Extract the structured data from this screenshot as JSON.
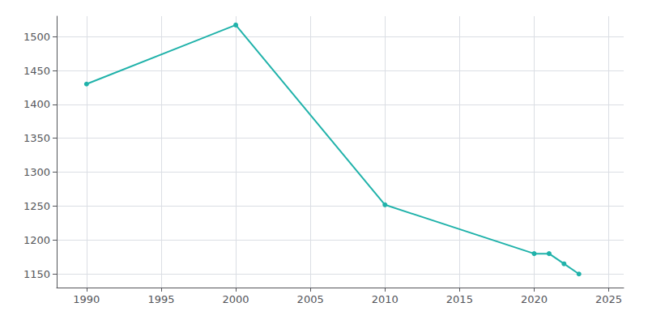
{
  "chart_data": {
    "type": "line",
    "x": [
      1990,
      2000,
      2010,
      2020,
      2021,
      2022,
      2023
    ],
    "values": [
      1430,
      1517,
      1252,
      1180,
      1180,
      1165,
      1150
    ],
    "color": "#20B2AA",
    "marker": "circle",
    "xlim": [
      1988,
      2026
    ],
    "ylim": [
      1130,
      1530
    ],
    "xticks": [
      1990,
      1995,
      2000,
      2005,
      2010,
      2015,
      2020,
      2025
    ],
    "yticks": [
      1150,
      1200,
      1250,
      1300,
      1350,
      1400,
      1450,
      1500
    ],
    "grid": true
  }
}
